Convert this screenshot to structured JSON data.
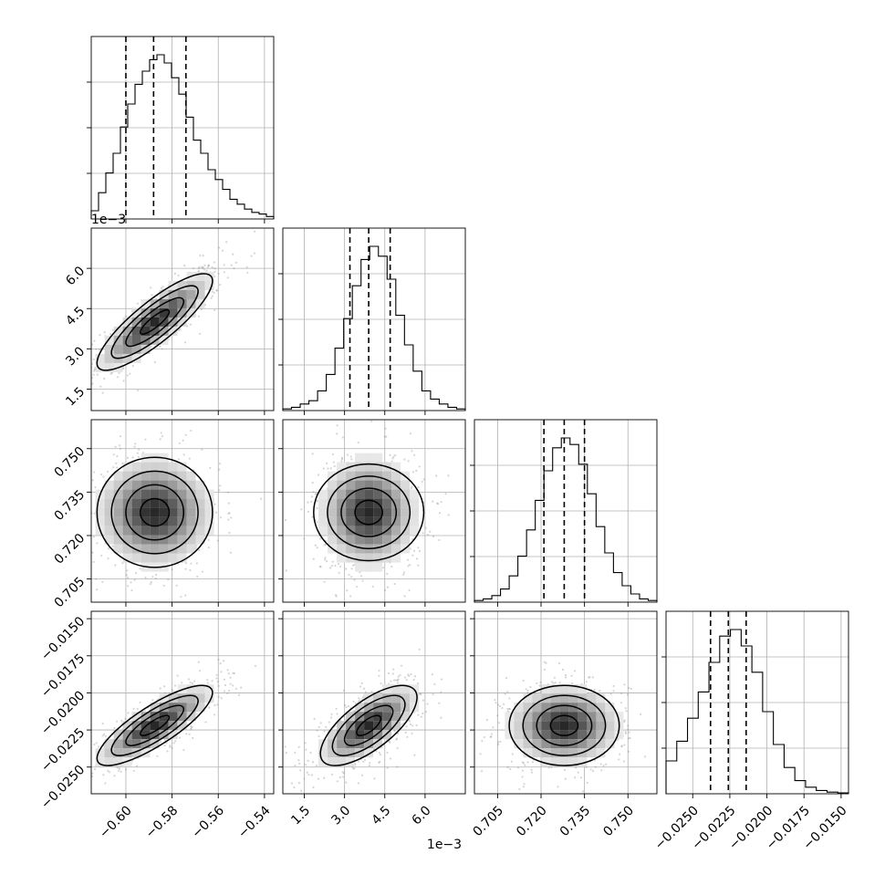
{
  "chart_data": {
    "type": "corner",
    "parameters": [
      {
        "range": [
          -0.615,
          -0.536
        ],
        "ticks": [
          -0.6,
          -0.58,
          -0.56,
          -0.54
        ],
        "tick_labels": [
          "−0.60",
          "−0.58",
          "−0.56",
          "−0.54"
        ],
        "quantiles": [
          -0.6,
          -0.588,
          -0.574
        ],
        "hist": [
          0.05,
          0.16,
          0.28,
          0.4,
          0.56,
          0.7,
          0.82,
          0.9,
          0.97,
          1.0,
          0.95,
          0.86,
          0.76,
          0.62,
          0.48,
          0.4,
          0.3,
          0.24,
          0.18,
          0.12,
          0.09,
          0.06,
          0.04,
          0.03,
          0.015
        ]
      },
      {
        "range": [
          0.7,
          7.5
        ],
        "ticks": [
          1.5,
          3.0,
          4.5,
          6.0
        ],
        "tick_labels": [
          "1.5",
          "3.0",
          "4.5",
          "6.0"
        ],
        "offset_text": "1e−3",
        "quantiles": [
          3.2,
          3.9,
          4.7
        ],
        "hist": [
          0.01,
          0.02,
          0.04,
          0.06,
          0.12,
          0.22,
          0.38,
          0.56,
          0.76,
          0.92,
          1.0,
          0.94,
          0.8,
          0.58,
          0.4,
          0.24,
          0.12,
          0.07,
          0.04,
          0.02,
          0.01
        ]
      },
      {
        "range": [
          0.697,
          0.76
        ],
        "ticks": [
          0.705,
          0.72,
          0.735,
          0.75
        ],
        "tick_labels": [
          "0.705",
          "0.720",
          "0.735",
          "0.750"
        ],
        "quantiles": [
          0.721,
          0.728,
          0.735
        ],
        "hist": [
          0.01,
          0.02,
          0.04,
          0.08,
          0.16,
          0.28,
          0.44,
          0.62,
          0.8,
          0.94,
          1.0,
          0.96,
          0.84,
          0.66,
          0.46,
          0.3,
          0.18,
          0.1,
          0.05,
          0.02,
          0.01
        ]
      },
      {
        "range": [
          -0.0268,
          -0.0145
        ],
        "ticks": [
          -0.025,
          -0.0225,
          -0.02,
          -0.0175,
          -0.015
        ],
        "tick_labels": [
          "−0.0250",
          "−0.0225",
          "−0.0200",
          "−0.0175",
          "−0.0150"
        ],
        "y_tick_labels": [
          "−0.0150",
          "−0.0175",
          "−0.0200",
          "−0.0225",
          "−0.0250"
        ],
        "quantiles": [
          -0.0238,
          -0.0226,
          -0.0214
        ],
        "hist": [
          0.2,
          0.32,
          0.46,
          0.62,
          0.8,
          0.96,
          1.0,
          0.9,
          0.74,
          0.5,
          0.3,
          0.16,
          0.08,
          0.04,
          0.02,
          0.01,
          0.005
        ]
      }
    ],
    "panels": [
      {
        "row": 1,
        "col": 0,
        "center": [
          -0.5875,
          4.0
        ],
        "sd": [
          0.0125,
          0.9
        ],
        "corr": 0.85
      },
      {
        "row": 2,
        "col": 0,
        "center": [
          -0.5875,
          0.728
        ],
        "sd": [
          0.0125,
          0.0095
        ],
        "corr": 0.0
      },
      {
        "row": 2,
        "col": 1,
        "center": [
          3.9,
          0.728
        ],
        "sd": [
          0.9,
          0.0095
        ],
        "corr": 0.0
      },
      {
        "row": 3,
        "col": 0,
        "center": [
          -0.5875,
          -0.0222
        ],
        "sd": [
          0.0125,
          0.00135
        ],
        "corr": 0.82
      },
      {
        "row": 3,
        "col": 1,
        "center": [
          3.9,
          -0.0222
        ],
        "sd": [
          0.9,
          0.00135
        ],
        "corr": 0.7
      },
      {
        "row": 3,
        "col": 2,
        "center": [
          0.728,
          -0.0222
        ],
        "sd": [
          0.0095,
          0.00135
        ],
        "corr": 0.0
      }
    ],
    "grid": true
  }
}
